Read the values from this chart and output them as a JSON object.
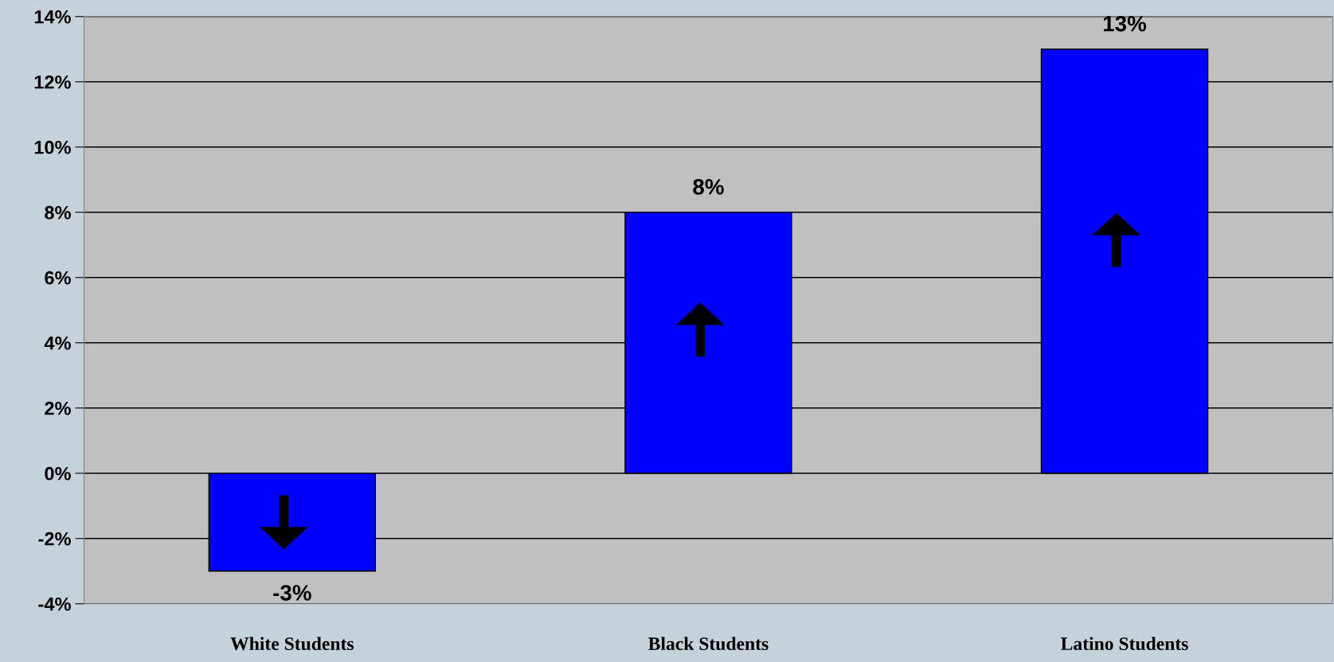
{
  "chart_data": {
    "type": "bar",
    "categories": [
      "White Students",
      "Black Students",
      "Latino Students"
    ],
    "values": [
      -3,
      8,
      13
    ],
    "color": "#0000ff",
    "value_labels": [
      "-3%",
      "8%",
      "13%"
    ],
    "ylim": [
      -4,
      14
    ],
    "yticks": [
      {
        "value": -4,
        "label": "-4%"
      },
      {
        "value": -2,
        "label": "-2%"
      },
      {
        "value": 0,
        "label": "0%"
      },
      {
        "value": 2,
        "label": "2%"
      },
      {
        "value": 4,
        "label": "4%"
      },
      {
        "value": 6,
        "label": "6%"
      },
      {
        "value": 8,
        "label": "8%"
      },
      {
        "value": 10,
        "label": "10%"
      },
      {
        "value": 12,
        "label": "12%"
      },
      {
        "value": 14,
        "label": "14%"
      }
    ],
    "grid": "y"
  }
}
